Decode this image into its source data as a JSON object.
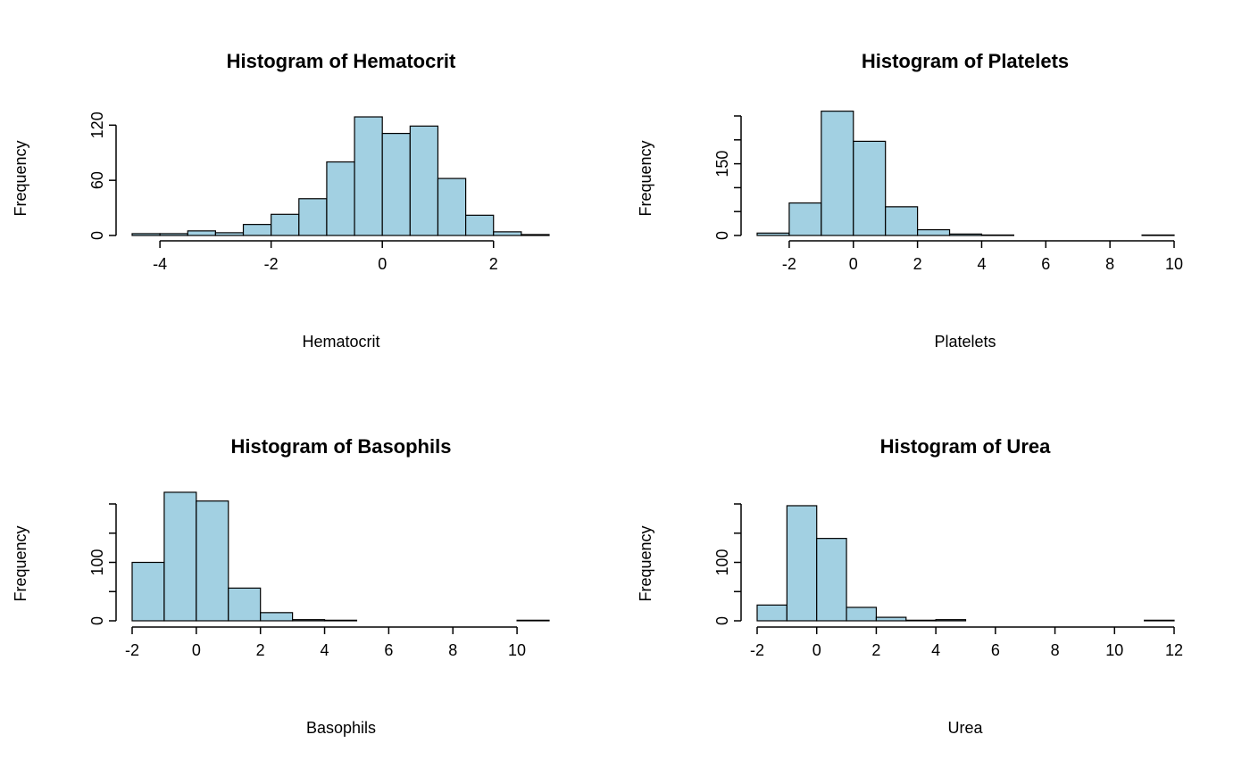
{
  "figure": {
    "background": "#ffffff",
    "bar_fill": "#a2d0e2",
    "bar_stroke": "#000000"
  },
  "chart_data": [
    {
      "type": "bar",
      "title": "Histogram of Hematocrit",
      "xlabel": "Hematocrit",
      "ylabel": "Frequency",
      "xlim": [
        -4.5,
        3
      ],
      "ylim": [
        0,
        130
      ],
      "xticks": [
        -4,
        -2,
        0,
        2
      ],
      "yticks": [
        0,
        60,
        120
      ],
      "bins": [
        {
          "x0": -4.5,
          "x1": -4.0,
          "count": 2
        },
        {
          "x0": -4.0,
          "x1": -3.5,
          "count": 2
        },
        {
          "x0": -3.5,
          "x1": -3.0,
          "count": 5
        },
        {
          "x0": -3.0,
          "x1": -2.5,
          "count": 3
        },
        {
          "x0": -2.5,
          "x1": -2.0,
          "count": 12
        },
        {
          "x0": -2.0,
          "x1": -1.5,
          "count": 23
        },
        {
          "x0": -1.5,
          "x1": -1.0,
          "count": 40
        },
        {
          "x0": -1.0,
          "x1": -0.5,
          "count": 80
        },
        {
          "x0": -0.5,
          "x1": 0.0,
          "count": 129
        },
        {
          "x0": 0.0,
          "x1": 0.5,
          "count": 111
        },
        {
          "x0": 0.5,
          "x1": 1.0,
          "count": 119
        },
        {
          "x0": 1.0,
          "x1": 1.5,
          "count": 62
        },
        {
          "x0": 1.5,
          "x1": 2.0,
          "count": 22
        },
        {
          "x0": 2.0,
          "x1": 2.5,
          "count": 4
        },
        {
          "x0": 2.5,
          "x1": 3.0,
          "count": 1
        }
      ]
    },
    {
      "type": "bar",
      "title": "Histogram of Platelets",
      "xlabel": "Platelets",
      "ylabel": "Frequency",
      "xlim": [
        -3,
        10
      ],
      "ylim": [
        0,
        250
      ],
      "xticks": [
        -2,
        0,
        2,
        4,
        6,
        8,
        10
      ],
      "yticks": [
        0,
        50,
        100,
        150,
        200,
        250
      ],
      "ytick_labels": [
        "0",
        "",
        "",
        "150",
        "",
        ""
      ],
      "bins": [
        {
          "x0": -3,
          "x1": -2,
          "count": 5
        },
        {
          "x0": -2,
          "x1": -1,
          "count": 68
        },
        {
          "x0": -1,
          "x1": 0,
          "count": 260
        },
        {
          "x0": 0,
          "x1": 1,
          "count": 197
        },
        {
          "x0": 1,
          "x1": 2,
          "count": 60
        },
        {
          "x0": 2,
          "x1": 3,
          "count": 12
        },
        {
          "x0": 3,
          "x1": 4,
          "count": 3
        },
        {
          "x0": 4,
          "x1": 5,
          "count": 1
        },
        {
          "x0": 5,
          "x1": 6,
          "count": 0
        },
        {
          "x0": 6,
          "x1": 7,
          "count": 0
        },
        {
          "x0": 7,
          "x1": 8,
          "count": 0
        },
        {
          "x0": 8,
          "x1": 9,
          "count": 0
        },
        {
          "x0": 9,
          "x1": 10,
          "count": 1
        }
      ]
    },
    {
      "type": "bar",
      "title": "Histogram of Basophils",
      "xlabel": "Basophils",
      "ylabel": "Frequency",
      "xlim": [
        -2,
        11
      ],
      "ylim": [
        0,
        200
      ],
      "xticks": [
        -2,
        0,
        2,
        4,
        6,
        8,
        10
      ],
      "yticks": [
        0,
        50,
        100,
        150,
        200
      ],
      "ytick_labels": [
        "0",
        "",
        "100",
        "",
        ""
      ],
      "bins": [
        {
          "x0": -2,
          "x1": -1,
          "count": 100
        },
        {
          "x0": -1,
          "x1": 0,
          "count": 220
        },
        {
          "x0": 0,
          "x1": 1,
          "count": 205
        },
        {
          "x0": 1,
          "x1": 2,
          "count": 56
        },
        {
          "x0": 2,
          "x1": 3,
          "count": 14
        },
        {
          "x0": 3,
          "x1": 4,
          "count": 2
        },
        {
          "x0": 4,
          "x1": 5,
          "count": 1
        },
        {
          "x0": 5,
          "x1": 6,
          "count": 0
        },
        {
          "x0": 6,
          "x1": 7,
          "count": 0
        },
        {
          "x0": 7,
          "x1": 8,
          "count": 0
        },
        {
          "x0": 8,
          "x1": 9,
          "count": 0
        },
        {
          "x0": 9,
          "x1": 10,
          "count": 0
        },
        {
          "x0": 10,
          "x1": 11,
          "count": 1
        }
      ]
    },
    {
      "type": "bar",
      "title": "Histogram of Urea",
      "xlabel": "Urea",
      "ylabel": "Frequency",
      "xlim": [
        -2,
        12
      ],
      "ylim": [
        0,
        200
      ],
      "xticks": [
        -2,
        0,
        2,
        4,
        6,
        8,
        10,
        12
      ],
      "yticks": [
        0,
        50,
        100,
        150,
        200
      ],
      "ytick_labels": [
        "0",
        "",
        "100",
        "",
        ""
      ],
      "bins": [
        {
          "x0": -2,
          "x1": -1,
          "count": 27
        },
        {
          "x0": -1,
          "x1": 0,
          "count": 197
        },
        {
          "x0": 0,
          "x1": 1,
          "count": 141
        },
        {
          "x0": 1,
          "x1": 2,
          "count": 23
        },
        {
          "x0": 2,
          "x1": 3,
          "count": 6
        },
        {
          "x0": 3,
          "x1": 4,
          "count": 1
        },
        {
          "x0": 4,
          "x1": 5,
          "count": 2
        },
        {
          "x0": 5,
          "x1": 6,
          "count": 0
        },
        {
          "x0": 6,
          "x1": 7,
          "count": 0
        },
        {
          "x0": 7,
          "x1": 8,
          "count": 0
        },
        {
          "x0": 8,
          "x1": 9,
          "count": 0
        },
        {
          "x0": 9,
          "x1": 10,
          "count": 0
        },
        {
          "x0": 10,
          "x1": 11,
          "count": 0
        },
        {
          "x0": 11,
          "x1": 12,
          "count": 1
        }
      ]
    }
  ]
}
